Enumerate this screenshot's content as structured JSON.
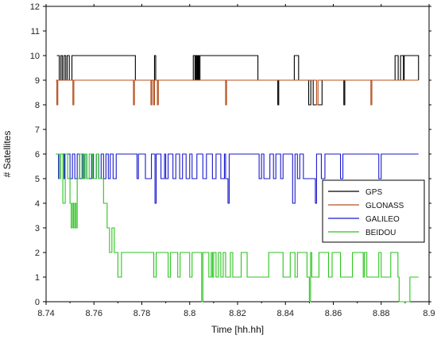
{
  "chart_data": {
    "type": "line",
    "title": "",
    "xlabel": "Time [hh.hh]",
    "ylabel": "# Satellites",
    "xlim": [
      8.74,
      8.9
    ],
    "ylim": [
      0,
      12
    ],
    "xticks": [
      "8.74",
      "8.76",
      "8.78",
      "8.8",
      "8.82",
      "8.84",
      "8.86",
      "8.88",
      "8.9"
    ],
    "yticks": [
      "0",
      "1",
      "2",
      "3",
      "4",
      "5",
      "6",
      "7",
      "8",
      "9",
      "10",
      "11",
      "12"
    ],
    "legend_position": "right",
    "grid": false,
    "series": [
      {
        "name": "GPS",
        "color": "#000000",
        "step": true,
        "x": [
          8.7445,
          8.7455,
          8.7462,
          8.7468,
          8.7475,
          8.7482,
          8.7488,
          8.7497,
          8.7508,
          8.7773,
          8.7786,
          8.7853,
          8.7858,
          8.8015,
          8.8022,
          8.8024,
          8.8028,
          8.803,
          8.8033,
          8.8036,
          8.8039,
          8.8043,
          8.8285,
          8.8287,
          8.8368,
          8.8372,
          8.8437,
          8.8455,
          8.8497,
          8.8506,
          8.8516,
          8.8537,
          8.8553,
          8.8644,
          8.8648,
          8.8858,
          8.8871,
          8.8881,
          8.8893,
          8.8896,
          8.8956
        ],
        "y": [
          10,
          9,
          10,
          9,
          10,
          9,
          10,
          9,
          10,
          9,
          9,
          10,
          9,
          10,
          9,
          10,
          9,
          10,
          9,
          10,
          9,
          10,
          9,
          9,
          8,
          9,
          10,
          9,
          8,
          9,
          8,
          8,
          9,
          8,
          9,
          10,
          9,
          10,
          9,
          10,
          9
        ]
      },
      {
        "name": "GLONASS",
        "color": "#b5501e",
        "step": true,
        "x": [
          8.7441,
          8.7445,
          8.7449,
          8.7512,
          8.7516,
          8.7765,
          8.7769,
          8.7838,
          8.7842,
          8.7849,
          8.7853,
          8.7865,
          8.7869,
          8.815,
          8.8154,
          8.853,
          8.8536,
          8.8757,
          8.8761,
          8.8956
        ],
        "y": [
          9,
          8,
          9,
          8,
          9,
          8,
          9,
          8,
          9,
          8,
          9,
          8,
          9,
          8,
          9,
          8,
          9,
          8,
          9,
          9
        ]
      },
      {
        "name": "GALILEO",
        "color": "#1a1acf",
        "step": true,
        "x": [
          8.7441,
          8.7452,
          8.746,
          8.7475,
          8.7478,
          8.75,
          8.751,
          8.752,
          8.753,
          8.754,
          8.755,
          8.7555,
          8.7562,
          8.757,
          8.759,
          8.7598,
          8.761,
          8.762,
          8.763,
          8.764,
          8.765,
          8.766,
          8.7668,
          8.768,
          8.7693,
          8.77,
          8.778,
          8.7786,
          8.78,
          8.7815,
          8.784,
          8.7855,
          8.786,
          8.788,
          8.7895,
          8.79,
          8.791,
          8.793,
          8.7942,
          8.7958,
          8.797,
          8.7985,
          8.8,
          8.801,
          8.803,
          8.8055,
          8.807,
          8.8095,
          8.811,
          8.813,
          8.8145,
          8.815,
          8.816,
          8.8165,
          8.829,
          8.83,
          8.831,
          8.8335,
          8.835,
          8.836,
          8.838,
          8.839,
          8.843,
          8.844,
          8.845,
          8.846,
          8.8475,
          8.8525,
          8.853,
          8.855,
          8.8565,
          8.863,
          8.864,
          8.879,
          8.88,
          8.8956
        ],
        "y": [
          6,
          5,
          6,
          5,
          6,
          5,
          6,
          5,
          6,
          5,
          6,
          5,
          6,
          5,
          6,
          5,
          6,
          5,
          6,
          5,
          6,
          5,
          6,
          5,
          6,
          6,
          5,
          6,
          6,
          5,
          6,
          4,
          6,
          5,
          6,
          5,
          6,
          5,
          6,
          5,
          6,
          5,
          6,
          5,
          6,
          5,
          6,
          5,
          6,
          5,
          6,
          5,
          4,
          6,
          5,
          6,
          5,
          6,
          5,
          6,
          5,
          6,
          4,
          6,
          5,
          6,
          5,
          4,
          6,
          5,
          6,
          5,
          6,
          5,
          6,
          6
        ]
      },
      {
        "name": "BEIDOU",
        "color": "#2bc41e",
        "step": true,
        "x": [
          8.7441,
          8.7455,
          8.746,
          8.747,
          8.748,
          8.749,
          8.75,
          8.7505,
          8.751,
          8.7515,
          8.752,
          8.7525,
          8.753,
          8.754,
          8.755,
          8.756,
          8.757,
          8.758,
          8.7595,
          8.761,
          8.762,
          8.764,
          8.7655,
          8.7665,
          8.7675,
          8.7685,
          8.77,
          8.7715,
          8.785,
          8.786,
          8.791,
          8.792,
          8.795,
          8.796,
          8.8,
          8.801,
          8.805,
          8.8055,
          8.808,
          8.809,
          8.8095,
          8.81,
          8.811,
          8.812,
          8.813,
          8.814,
          8.815,
          8.817,
          8.818,
          8.8215,
          8.824,
          8.833,
          8.839,
          8.842,
          8.844,
          8.845,
          8.849,
          8.85,
          8.8505,
          8.851,
          8.854,
          8.858,
          8.8595,
          8.863,
          8.868,
          8.8725,
          8.873,
          8.874,
          8.879,
          8.88,
          8.883,
          8.884,
          8.887,
          8.8875,
          8.892,
          8.893,
          8.8956
        ],
        "y": [
          6,
          5,
          6,
          4,
          6,
          5,
          4,
          3,
          4,
          3,
          4,
          3,
          5,
          6,
          5,
          6,
          5,
          6,
          5,
          6,
          5,
          4,
          3,
          2,
          3,
          2,
          1,
          2,
          1,
          2,
          1,
          2,
          1,
          2,
          1,
          2,
          0,
          2,
          1,
          2,
          1,
          2,
          1,
          2,
          1,
          2,
          1,
          2,
          1,
          2,
          1,
          2,
          1,
          2,
          1,
          2,
          1,
          0,
          2,
          1,
          2,
          1,
          2,
          1,
          2,
          1,
          2,
          1,
          2,
          1,
          1,
          2,
          1,
          0,
          1,
          1,
          1
        ]
      }
    ]
  }
}
